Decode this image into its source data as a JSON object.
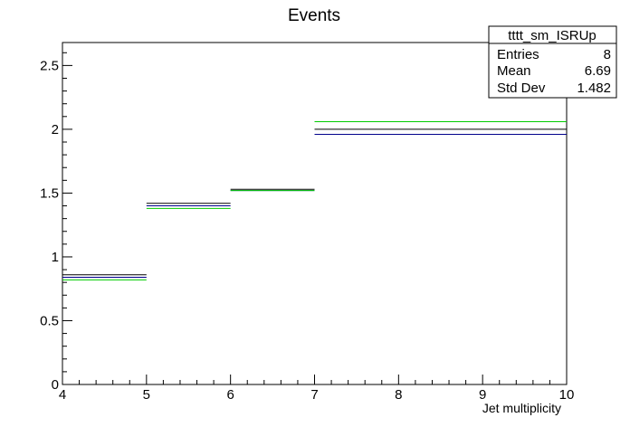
{
  "chart_data": {
    "type": "line",
    "title": "Events",
    "xlabel": "Jet multiplicity",
    "ylabel": "",
    "xlim": [
      4,
      10
    ],
    "ylim": [
      0,
      2.68
    ],
    "x_ticks": [
      "4",
      "5",
      "6",
      "7",
      "8",
      "9",
      "10"
    ],
    "y_ticks": [
      "0",
      "0.5",
      "1",
      "1.5",
      "2",
      "2.5"
    ],
    "bins": [
      [
        4,
        5
      ],
      [
        5,
        6
      ],
      [
        6,
        7
      ],
      [
        7,
        10
      ]
    ],
    "series": [
      {
        "color": "#000000",
        "values": [
          0.86,
          1.42,
          1.53,
          2.0
        ]
      },
      {
        "color": "#00008b",
        "values": [
          0.84,
          1.4,
          1.52,
          1.96
        ]
      },
      {
        "color": "#00cc00",
        "values": [
          0.82,
          1.38,
          1.52,
          2.06
        ]
      }
    ],
    "grid": false,
    "legend": "none"
  },
  "stats_box": {
    "title": "tttt_sm_ISRUp",
    "rows": [
      {
        "label": "Entries",
        "value": "8"
      },
      {
        "label": "Mean",
        "value": "6.69"
      },
      {
        "label": "Std Dev",
        "value": "1.482"
      }
    ]
  }
}
